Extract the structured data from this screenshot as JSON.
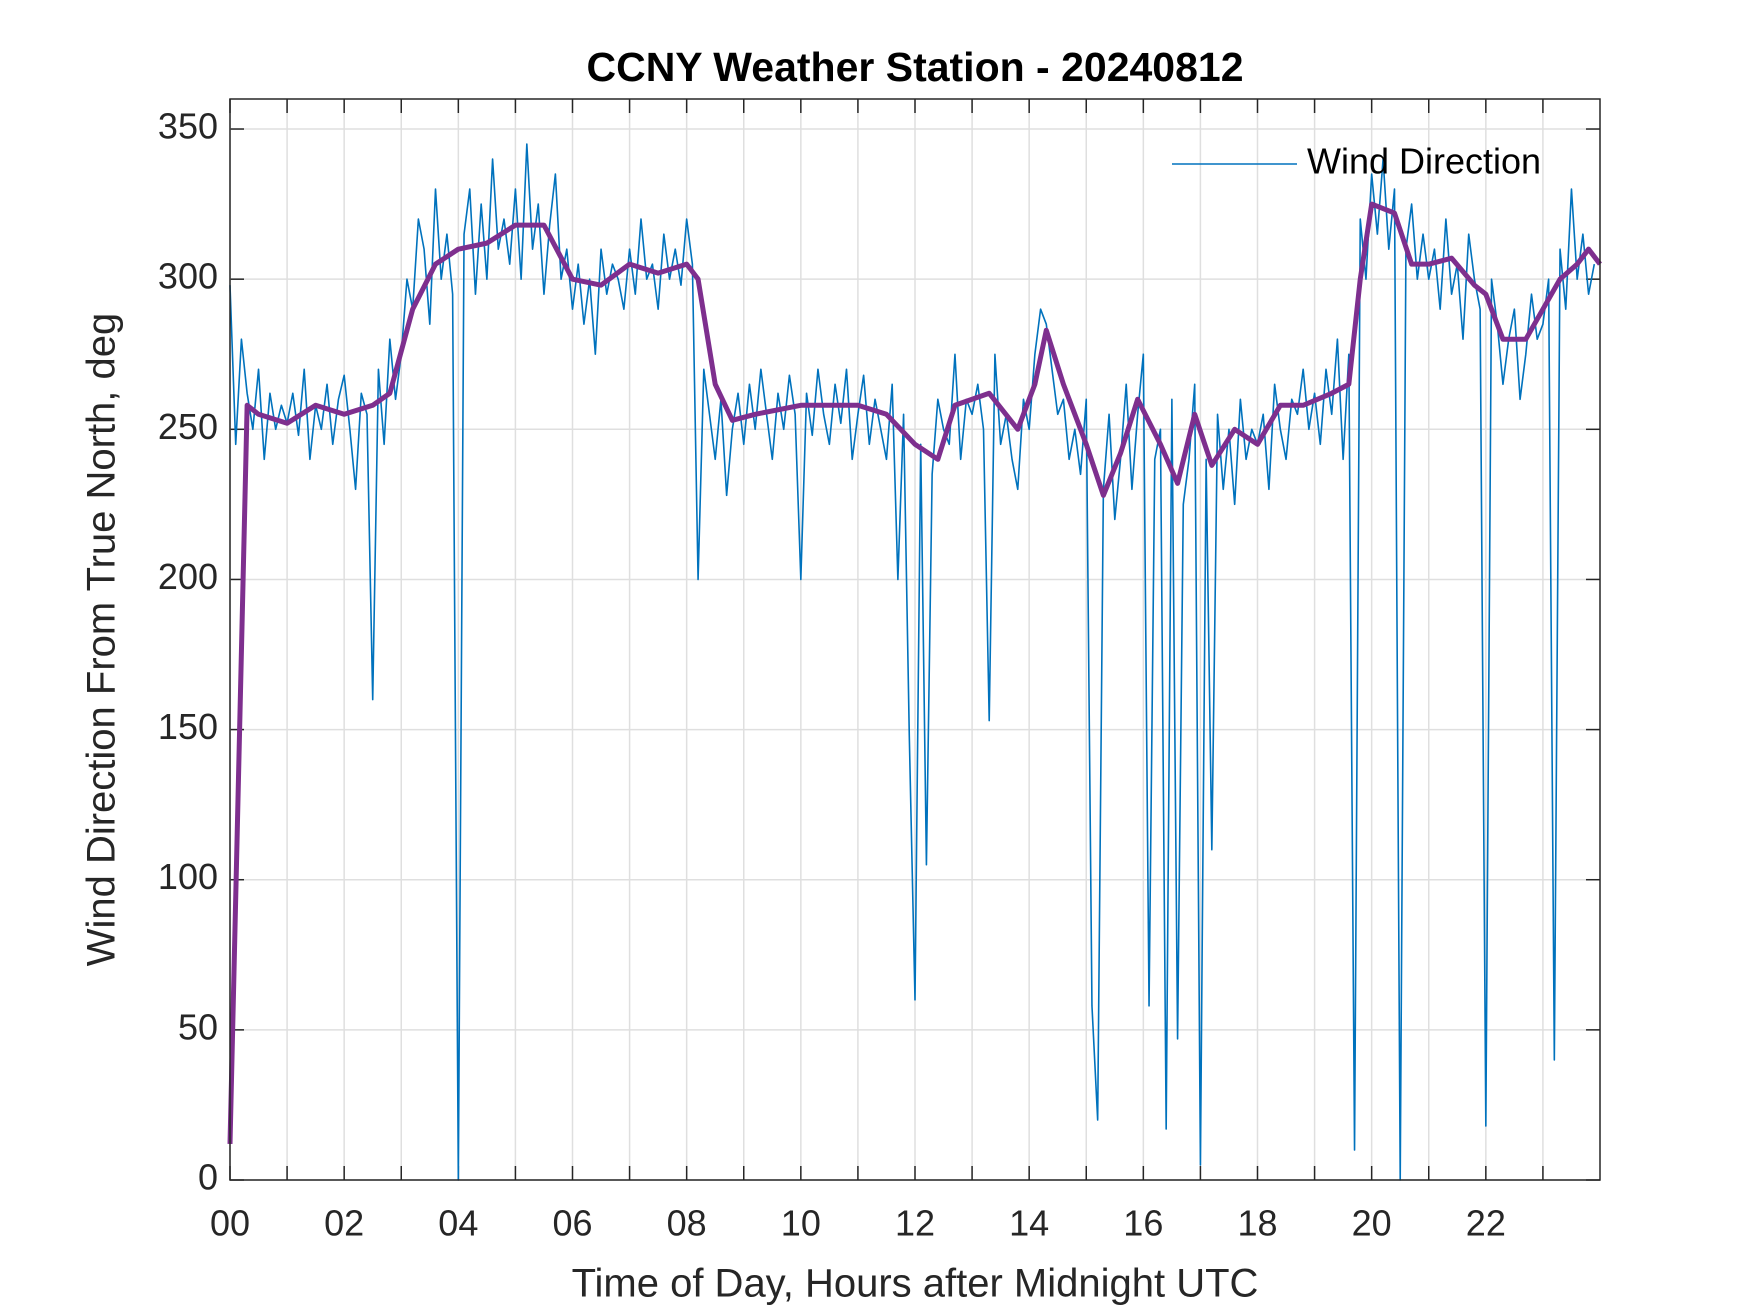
{
  "chart_data": {
    "type": "line",
    "title": "CCNY Weather Station - 20240812",
    "x_label": "Time of Day, Hours after Midnight UTC",
    "y_label": "Wind Direction From True North, deg",
    "xlim": [
      0,
      24
    ],
    "ylim": [
      0,
      360
    ],
    "xticks": [
      {
        "value": 0,
        "label": "00"
      },
      {
        "value": 2,
        "label": "02"
      },
      {
        "value": 4,
        "label": "04"
      },
      {
        "value": 6,
        "label": "06"
      },
      {
        "value": 8,
        "label": "08"
      },
      10,
      12,
      14,
      16,
      18,
      20,
      22
    ],
    "x_minor_ticks": [
      1,
      3,
      5,
      7,
      9,
      11,
      13,
      15,
      17,
      19,
      21,
      23
    ],
    "yticks": [
      0,
      50,
      100,
      150,
      200,
      250,
      300,
      350
    ],
    "grid": true,
    "legend": "northeast",
    "series": [
      {
        "name": "Wind Direction",
        "color": "#0072bd",
        "x": [
          0.0,
          0.1,
          0.2,
          0.3,
          0.4,
          0.5,
          0.6,
          0.7,
          0.8,
          0.9,
          1.0,
          1.1,
          1.2,
          1.3,
          1.4,
          1.5,
          1.6,
          1.7,
          1.8,
          1.9,
          2.0,
          2.1,
          2.2,
          2.3,
          2.4,
          2.5,
          2.6,
          2.7,
          2.8,
          2.9,
          3.0,
          3.1,
          3.2,
          3.3,
          3.4,
          3.5,
          3.6,
          3.7,
          3.8,
          3.9,
          4.0,
          4.1,
          4.2,
          4.3,
          4.4,
          4.5,
          4.6,
          4.7,
          4.8,
          4.9,
          5.0,
          5.1,
          5.2,
          5.3,
          5.4,
          5.5,
          5.6,
          5.7,
          5.8,
          5.9,
          6.0,
          6.1,
          6.2,
          6.3,
          6.4,
          6.5,
          6.6,
          6.7,
          6.8,
          6.9,
          7.0,
          7.1,
          7.2,
          7.3,
          7.4,
          7.5,
          7.6,
          7.7,
          7.8,
          7.9,
          8.0,
          8.1,
          8.2,
          8.3,
          8.4,
          8.5,
          8.6,
          8.7,
          8.8,
          8.9,
          9.0,
          9.1,
          9.2,
          9.3,
          9.4,
          9.5,
          9.6,
          9.7,
          9.8,
          9.9,
          10.0,
          10.1,
          10.2,
          10.3,
          10.4,
          10.5,
          10.6,
          10.7,
          10.8,
          10.9,
          11.0,
          11.1,
          11.2,
          11.3,
          11.4,
          11.5,
          11.6,
          11.7,
          11.8,
          11.9,
          12.0,
          12.1,
          12.2,
          12.3,
          12.4,
          12.5,
          12.6,
          12.7,
          12.8,
          12.9,
          13.0,
          13.1,
          13.2,
          13.3,
          13.4,
          13.5,
          13.6,
          13.7,
          13.8,
          13.9,
          14.0,
          14.1,
          14.2,
          14.3,
          14.4,
          14.5,
          14.6,
          14.7,
          14.8,
          14.9,
          15.0,
          15.1,
          15.2,
          15.3,
          15.4,
          15.5,
          15.6,
          15.7,
          15.8,
          15.9,
          16.0,
          16.1,
          16.2,
          16.3,
          16.4,
          16.5,
          16.6,
          16.7,
          16.8,
          16.9,
          17.0,
          17.1,
          17.2,
          17.3,
          17.4,
          17.5,
          17.6,
          17.7,
          17.8,
          17.9,
          18.0,
          18.1,
          18.2,
          18.3,
          18.4,
          18.5,
          18.6,
          18.7,
          18.8,
          18.9,
          19.0,
          19.1,
          19.2,
          19.3,
          19.4,
          19.5,
          19.6,
          19.7,
          19.8,
          19.9,
          20.0,
          20.1,
          20.2,
          20.3,
          20.4,
          20.5,
          20.6,
          20.7,
          20.8,
          20.9,
          21.0,
          21.1,
          21.2,
          21.3,
          21.4,
          21.5,
          21.6,
          21.7,
          21.8,
          21.9,
          22.0,
          22.1,
          22.2,
          22.3,
          22.4,
          22.5,
          22.6,
          22.7,
          22.8,
          22.9,
          23.0,
          23.1,
          23.2,
          23.3,
          23.4,
          23.5,
          23.6,
          23.7,
          23.8,
          23.9
        ],
        "values": [
          298,
          245,
          280,
          262,
          250,
          270,
          240,
          262,
          250,
          258,
          252,
          262,
          248,
          270,
          240,
          258,
          250,
          265,
          245,
          260,
          268,
          250,
          230,
          262,
          255,
          160,
          270,
          245,
          280,
          260,
          275,
          300,
          290,
          320,
          310,
          285,
          330,
          300,
          315,
          295,
          0,
          315,
          330,
          295,
          325,
          300,
          340,
          310,
          320,
          305,
          330,
          300,
          345,
          310,
          325,
          295,
          318,
          335,
          300,
          310,
          290,
          305,
          285,
          300,
          275,
          310,
          295,
          305,
          300,
          290,
          310,
          295,
          320,
          300,
          305,
          290,
          315,
          300,
          310,
          298,
          320,
          305,
          200,
          270,
          255,
          240,
          260,
          228,
          250,
          262,
          245,
          265,
          250,
          270,
          255,
          240,
          262,
          250,
          268,
          255,
          200,
          262,
          248,
          270,
          255,
          245,
          265,
          252,
          270,
          240,
          255,
          268,
          245,
          260,
          250,
          240,
          265,
          200,
          255,
          148,
          60,
          245,
          105,
          235,
          260,
          250,
          245,
          275,
          240,
          260,
          255,
          265,
          250,
          153,
          275,
          245,
          255,
          240,
          230,
          260,
          250,
          275,
          290,
          285,
          270,
          255,
          260,
          240,
          250,
          235,
          260,
          58,
          20,
          230,
          255,
          220,
          240,
          265,
          230,
          255,
          275,
          58,
          240,
          250,
          17,
          260,
          47,
          225,
          240,
          265,
          5,
          240,
          110,
          255,
          230,
          250,
          225,
          260,
          240,
          250,
          245,
          255,
          230,
          265,
          250,
          240,
          260,
          255,
          270,
          250,
          262,
          245,
          270,
          255,
          280,
          240,
          275,
          10,
          320,
          300,
          335,
          315,
          340,
          310,
          330,
          0,
          310,
          325,
          300,
          315,
          300,
          310,
          290,
          320,
          295,
          305,
          280,
          315,
          300,
          290,
          18,
          300,
          285,
          265,
          280,
          290,
          260,
          275,
          295,
          280,
          285,
          300,
          40,
          310,
          290,
          330,
          300,
          315,
          295,
          305
        ]
      },
      {
        "color": "#7e2f8e",
        "x": [
          0,
          0.3,
          0.5,
          1,
          1.5,
          2,
          2.5,
          2.8,
          3.2,
          3.6,
          4,
          4.5,
          5,
          5.5,
          6,
          6.5,
          7,
          7.5,
          8,
          8.2,
          8.5,
          8.8,
          9.2,
          10,
          11,
          11.5,
          12,
          12.4,
          12.7,
          13.3,
          13.8,
          14.1,
          14.3,
          14.6,
          15,
          15.3,
          15.6,
          15.9,
          16.3,
          16.6,
          16.9,
          17.2,
          17.6,
          18,
          18.4,
          18.8,
          19.3,
          19.6,
          19.8,
          20,
          20.4,
          20.7,
          21,
          21.4,
          21.8,
          22,
          22.3,
          22.7,
          23,
          23.3,
          23.6,
          23.8,
          24
        ],
        "values": [
          12,
          258,
          255,
          252,
          258,
          255,
          258,
          262,
          290,
          305,
          310,
          312,
          318,
          318,
          300,
          298,
          305,
          302,
          305,
          300,
          265,
          253,
          255,
          258,
          258,
          255,
          245,
          240,
          258,
          262,
          250,
          265,
          283,
          265,
          245,
          228,
          242,
          260,
          245,
          232,
          255,
          238,
          250,
          245,
          258,
          258,
          262,
          265,
          300,
          325,
          322,
          305,
          305,
          307,
          298,
          295,
          280,
          280,
          290,
          300,
          305,
          310,
          305
        ]
      }
    ]
  }
}
